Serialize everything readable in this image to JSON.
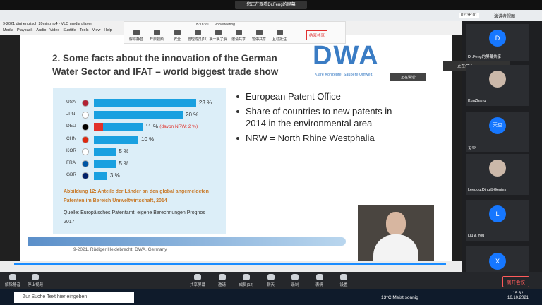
{
  "top_banner": "您正在观看Dr.Feng的屏幕",
  "meeting_timer": "02:36:01",
  "view_mode": "演讲者视图",
  "vlc": {
    "title": "9-2021 digi englisch 20min.mp4 - VLC media player",
    "menu": [
      "Media",
      "Playback",
      "Audio",
      "Video",
      "Subtitle",
      "Tools",
      "View",
      "Help"
    ]
  },
  "share_toolbar": {
    "status": "05:18:20",
    "app": "VoovMeeting",
    "buttons": [
      "解除静音",
      "开启视频",
      "安全",
      "管理成员(11)",
      "换一换了解",
      "邀请共享",
      "暂停共享",
      "互动批注"
    ],
    "stop": "结束共享"
  },
  "slide": {
    "title": [
      "2. Some facts about the innovation of the German",
      "Water Sector and IFAT – world biggest trade show"
    ],
    "logo": "DWA",
    "logo_tagline": "Klare Konzepte. Saubere Umwelt.",
    "chart": {
      "type": "bar",
      "categories": [
        "USA",
        "JPN",
        "DEU",
        "CHN",
        "KOR",
        "FRA",
        "GBR"
      ],
      "values": [
        23,
        20,
        11,
        10,
        5,
        5,
        3
      ],
      "value_labels": [
        "23 %",
        "20 %",
        "11 %",
        "10 %",
        "5 %",
        "5 %",
        "3 %"
      ],
      "color": "#1aa0e0",
      "nrw_value": 2,
      "nrw_color": "#e2312a",
      "nrw_label": "(davon NRW: 2 %)",
      "caption": [
        "Abbildung 12: Anteile der Länder an den global angemeldeten",
        "Patenten im Bereich Umweltwirtschaft, 2014"
      ],
      "source": [
        "Quelle: Europäisches Patentamt, eigene Berechnungen Prognos",
        "2017"
      ]
    },
    "bullets": [
      [
        "European Patent Office"
      ],
      [
        "Share of countries to new patents in",
        "2014 in the environmental area"
      ],
      [
        "NRW = North Rhine Westphalia"
      ]
    ],
    "footer": "9-2021, Rüdiger Heidebrecht, DWA, Germany"
  },
  "speaking_labels": [
    "正在讲话:",
    "正在讲话:"
  ],
  "participants": [
    {
      "initial": "D",
      "name": "Dr.Feng的屏幕共享"
    },
    {
      "name": "KunZhang"
    },
    {
      "initial": "天空",
      "name": "天空"
    },
    {
      "name": "Leepou.Ding@Genies"
    },
    {
      "initial": "L",
      "name": "Liu & You"
    },
    {
      "initial": "X"
    }
  ],
  "bottom_bar": {
    "left": [
      "解除静音",
      "停止视频"
    ],
    "center": [
      "共享屏幕",
      "邀请",
      "成员(12)",
      "聊天",
      "录制",
      "表情",
      "设置"
    ],
    "leave": "离开会议"
  },
  "taskbar": {
    "search": "Zur Suche Text hier eingeben",
    "weather": "13°C Meist sonnig",
    "time": "15:32",
    "date": "16.10.2021"
  }
}
